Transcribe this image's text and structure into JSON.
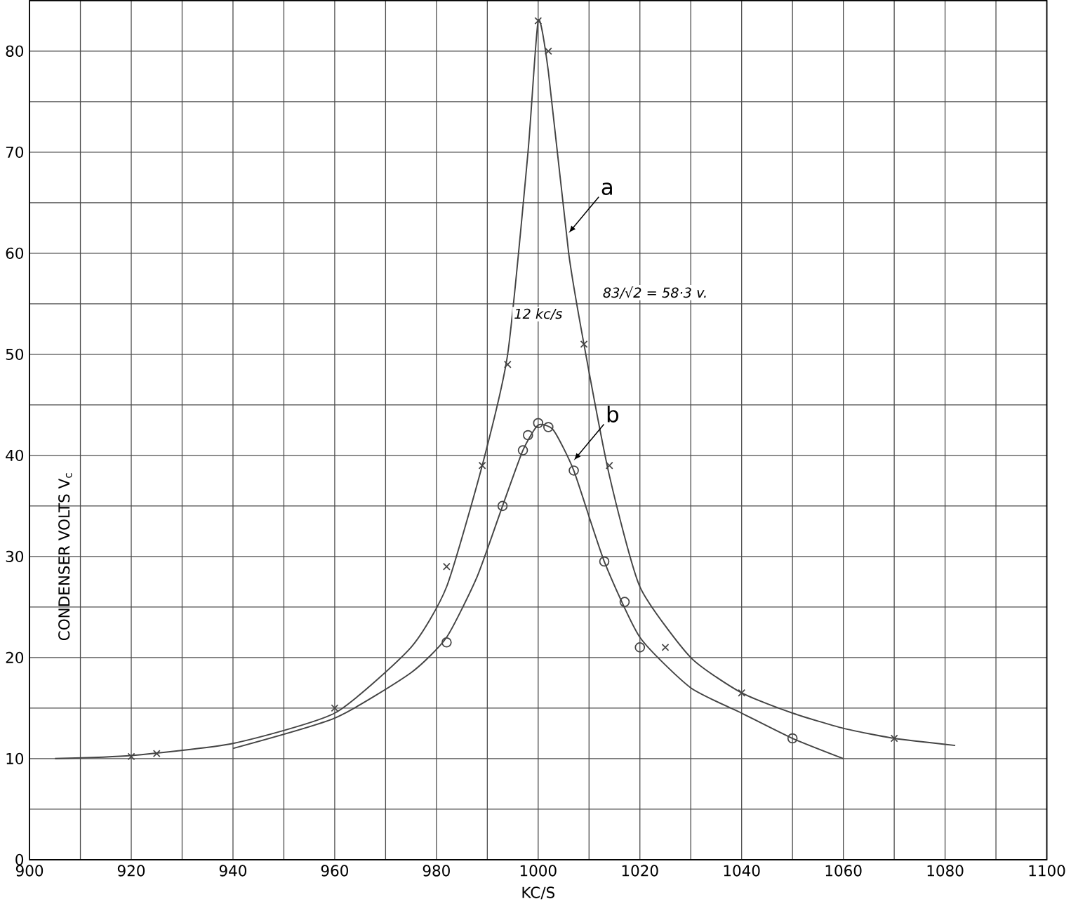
{
  "chart_data": {
    "type": "line",
    "xlabel": "KC/S",
    "ylabel": "CONDENSER VOLTS V$_{c}$",
    "xlim": [
      900,
      1100
    ],
    "ylim": [
      0,
      85
    ],
    "xticks": [
      900,
      920,
      940,
      960,
      980,
      1000,
      1020,
      1040,
      1060,
      1080,
      1100
    ],
    "yticks": [
      0,
      10,
      20,
      30,
      40,
      50,
      60,
      70,
      80
    ],
    "grid": true,
    "series": [
      {
        "color": "#444444",
        "x": [
          905,
          920,
          940,
          960,
          975,
          982,
          989,
          994,
          998,
          1000,
          1002,
          1006,
          1009,
          1014,
          1020,
          1030,
          1040,
          1050,
          1060,
          1070,
          1082
        ],
        "values": [
          10,
          10.3,
          11.5,
          14.5,
          21,
          27,
          39,
          50,
          70,
          83,
          78,
          60,
          51,
          38,
          27,
          20,
          16.5,
          14.5,
          13,
          12,
          11.3
        ]
      },
      {
        "color": "#444444",
        "x": [
          940,
          960,
          975,
          982,
          988,
          993,
          997,
          1000,
          1003,
          1007,
          1013,
          1020,
          1030,
          1040,
          1050,
          1060
        ],
        "values": [
          11,
          14,
          18.5,
          22,
          28,
          35,
          40.5,
          43,
          42.5,
          38.5,
          29.5,
          22,
          17,
          14.5,
          12,
          10
        ]
      },
      {
        "type": "scatter",
        "marker": "cross",
        "color": "#444444",
        "x": [
          920,
          925,
          960,
          982,
          989,
          994,
          1000,
          1002,
          1009,
          1014,
          1025,
          1040,
          1070
        ],
        "values": [
          10.2,
          10.5,
          15,
          29,
          39,
          49,
          83,
          80,
          51,
          39,
          21,
          16.5,
          12
        ]
      },
      {
        "type": "scatter",
        "marker": "circle",
        "color": "#444444",
        "x": [
          982,
          993,
          997,
          998,
          1000,
          1002,
          1007,
          1013,
          1017,
          1020,
          1050
        ],
        "values": [
          21.5,
          35,
          40.5,
          42,
          43.2,
          42.8,
          38.5,
          29.5,
          25.5,
          21,
          12
        ]
      }
    ],
    "annotations": [
      {
        "text": "a",
        "x": 1006,
        "y": 62
      },
      {
        "text": "b",
        "x": 1007,
        "y": 39.5
      },
      "83/√2 = 58·3 v.",
      "12 kc/s"
    ]
  }
}
